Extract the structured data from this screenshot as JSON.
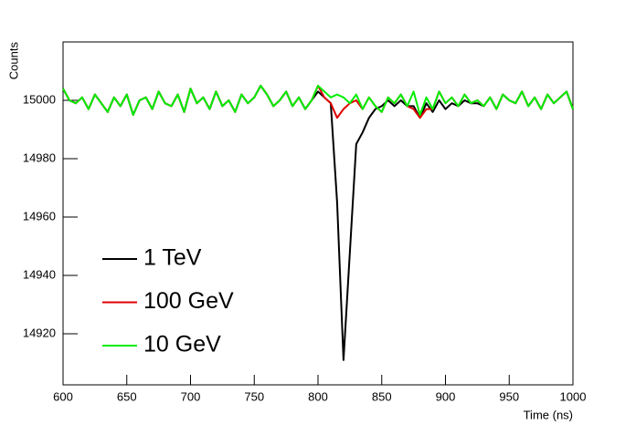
{
  "chart_data": {
    "type": "line",
    "xlabel": "Time (ns)",
    "ylabel": "Counts",
    "x": [
      600,
      605,
      610,
      615,
      620,
      625,
      630,
      635,
      640,
      645,
      650,
      655,
      660,
      665,
      670,
      675,
      680,
      685,
      690,
      695,
      700,
      705,
      710,
      715,
      720,
      725,
      730,
      735,
      740,
      745,
      750,
      755,
      760,
      765,
      770,
      775,
      780,
      785,
      790,
      795,
      800,
      805,
      810,
      815,
      820,
      825,
      830,
      835,
      840,
      845,
      850,
      855,
      860,
      865,
      870,
      875,
      880,
      885,
      890,
      895,
      900,
      905,
      910,
      915,
      920,
      925,
      930,
      935,
      940,
      945,
      950,
      955,
      960,
      965,
      970,
      975,
      980,
      985,
      990,
      995,
      1000
    ],
    "series": [
      {
        "name": "1 TeV",
        "color": "#000000",
        "values": [
          15004,
          15000,
          14999,
          15001,
          14997,
          15002,
          14999,
          14996,
          15001,
          14998,
          15002,
          14995,
          15000,
          15001,
          14997,
          15003,
          14999,
          14998,
          15002,
          14996,
          15004,
          14999,
          15001,
          14997,
          15003,
          14998,
          15000,
          14996,
          15002,
          14999,
          15001,
          15005,
          15002,
          14998,
          15000,
          15003,
          14998,
          15001,
          14997,
          15000,
          15003,
          15001,
          14999,
          14965,
          14911,
          14948,
          14985,
          14989,
          14994,
          14997,
          14998,
          15000,
          14998,
          15000,
          14998,
          14998,
          14994,
          14999,
          14996,
          15000,
          14997,
          14999,
          14998,
          15000,
          14999,
          14999,
          14998,
          15001,
          14997,
          15002,
          15000,
          14999,
          15003,
          14998,
          15001,
          14997,
          15002,
          14999,
          15001,
          15003,
          14997
        ]
      },
      {
        "name": "100 GeV",
        "color": "#e00000",
        "values": [
          15004,
          15000,
          14999,
          15001,
          14997,
          15002,
          14999,
          14996,
          15001,
          14998,
          15002,
          14995,
          15000,
          15001,
          14997,
          15003,
          14999,
          14998,
          15002,
          14996,
          15004,
          14999,
          15001,
          14997,
          15003,
          14998,
          15000,
          14996,
          15002,
          14999,
          15001,
          15005,
          15002,
          14998,
          15000,
          15003,
          14998,
          15001,
          14997,
          15000,
          15005,
          15001,
          14999,
          14994,
          14997,
          14999,
          15000,
          14997,
          15001,
          14998,
          14996,
          15001,
          14999,
          15002,
          14998,
          14997,
          14994,
          14997,
          14997,
          15003,
          14999,
          15001,
          14998,
          15002,
          14999,
          15000,
          14998,
          15001,
          14997,
          15002,
          15000,
          14999,
          15003,
          14998,
          15001,
          14997,
          15002,
          14999,
          15001,
          15003,
          14997
        ]
      },
      {
        "name": "10 GeV",
        "color": "#00ee00",
        "values": [
          15004,
          15000,
          14999,
          15001,
          14997,
          15002,
          14999,
          14996,
          15001,
          14998,
          15002,
          14995,
          15000,
          15001,
          14997,
          15003,
          14999,
          14998,
          15002,
          14996,
          15004,
          14999,
          15001,
          14997,
          15003,
          14998,
          15000,
          14996,
          15002,
          14999,
          15001,
          15005,
          15002,
          14998,
          15000,
          15003,
          14998,
          15001,
          14997,
          15000,
          15005,
          15003,
          15001,
          15002,
          15001,
          14999,
          15002,
          14997,
          15001,
          14998,
          14996,
          15001,
          14999,
          15002,
          14998,
          15003,
          14995,
          15001,
          14997,
          15003,
          14999,
          15001,
          14998,
          15002,
          14999,
          15000,
          14998,
          15001,
          14997,
          15002,
          15000,
          14999,
          15003,
          14998,
          15001,
          14997,
          15002,
          14999,
          15001,
          15003,
          14997
        ]
      }
    ],
    "xlim": [
      600,
      1000
    ],
    "xticks": [
      600,
      650,
      700,
      750,
      800,
      850,
      900,
      950,
      1000
    ],
    "ylim": [
      14902.5,
      15020
    ],
    "yticks": [
      14920,
      14940,
      14960,
      14980,
      15000
    ],
    "grid": false,
    "legend": "lower left"
  }
}
